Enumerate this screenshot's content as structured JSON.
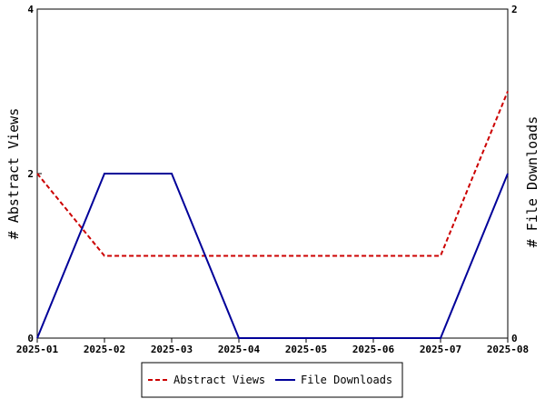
{
  "chart_data": {
    "type": "line",
    "x": [
      "2025-01",
      "2025-02",
      "2025-03",
      "2025-04",
      "2025-05",
      "2025-06",
      "2025-07",
      "2025-08"
    ],
    "series": [
      {
        "name": "Abstract Views",
        "axis": "left",
        "values": [
          2,
          1,
          1,
          1,
          1,
          1,
          1,
          3
        ],
        "color": "#cc0000",
        "style": "dashed"
      },
      {
        "name": "File Downloads",
        "axis": "right",
        "values": [
          0,
          1,
          1,
          0,
          0,
          0,
          0,
          1
        ],
        "color": "#000099",
        "style": "solid"
      }
    ],
    "ylabel_left": "# Abstract Views",
    "ylabel_right": "# File Downloads",
    "ylim_left": [
      0,
      4
    ],
    "ylim_right": [
      0,
      2
    ],
    "yticks_left": [
      "0",
      "2",
      "4"
    ],
    "yticks_right": [
      "0",
      "2"
    ],
    "grid": false,
    "legend_position": "bottom"
  }
}
